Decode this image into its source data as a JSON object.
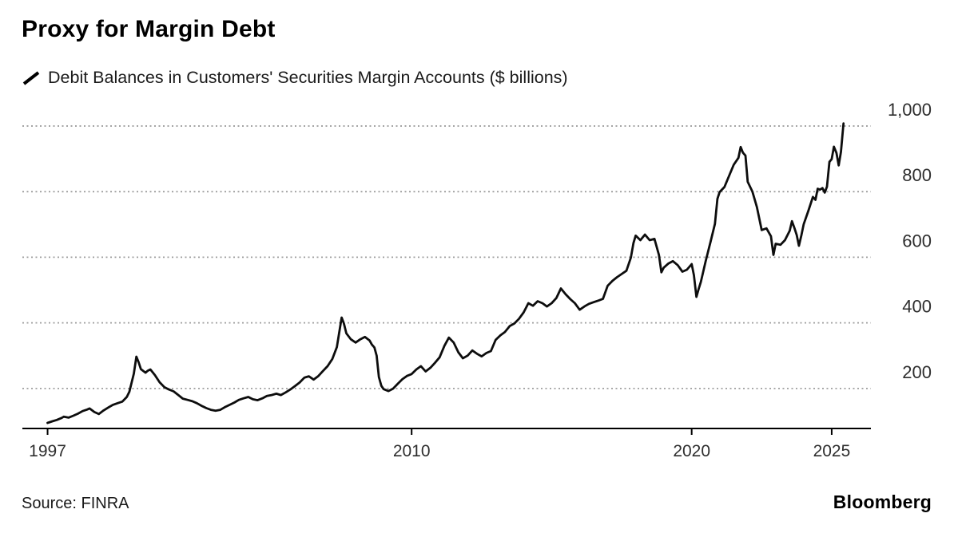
{
  "header": {
    "title": "Proxy for Margin Debt",
    "legend": {
      "series_label": "Debit Balances in Customers' Securities Margin Accounts ($ billions)"
    }
  },
  "footer": {
    "source": "Source: FINRA",
    "brand": "Bloomberg"
  },
  "colors": {
    "line": "#0d0d0d",
    "grid": "#9e9e9e",
    "axis": "#000000",
    "tick_label": "#2e2e2e"
  },
  "chart_data": {
    "type": "line",
    "title": "Proxy for Margin Debt",
    "series_name": "Debit Balances in Customers' Securities Margin Accounts ($ billions)",
    "source": "FINRA",
    "grid": "horizontal-dotted",
    "legend_position": "top-left",
    "xlim": [
      1996.1,
      2026.4
    ],
    "ylim": [
      78,
      1068
    ],
    "xticks": [
      1997,
      2010,
      2020,
      2025
    ],
    "xtick_labels": [
      "1997",
      "2010",
      "2020",
      "2025"
    ],
    "yticks": [
      200,
      400,
      600,
      800,
      1000
    ],
    "ytick_labels": [
      "200",
      "400",
      "600",
      "800",
      "1,000"
    ],
    "points": [
      [
        1997.0,
        95
      ],
      [
        1997.17,
        100
      ],
      [
        1997.33,
        104
      ],
      [
        1997.5,
        110
      ],
      [
        1997.58,
        114
      ],
      [
        1997.75,
        111
      ],
      [
        1997.92,
        117
      ],
      [
        1998.08,
        123
      ],
      [
        1998.25,
        131
      ],
      [
        1998.42,
        136
      ],
      [
        1998.5,
        139
      ],
      [
        1998.67,
        128
      ],
      [
        1998.83,
        122
      ],
      [
        1999.0,
        133
      ],
      [
        1999.17,
        142
      ],
      [
        1999.33,
        150
      ],
      [
        1999.5,
        155
      ],
      [
        1999.67,
        160
      ],
      [
        1999.83,
        174
      ],
      [
        1999.92,
        190
      ],
      [
        2000.08,
        245
      ],
      [
        2000.17,
        297
      ],
      [
        2000.25,
        280
      ],
      [
        2000.33,
        259
      ],
      [
        2000.5,
        248
      ],
      [
        2000.58,
        254
      ],
      [
        2000.67,
        258
      ],
      [
        2000.83,
        241
      ],
      [
        2001.0,
        219
      ],
      [
        2001.17,
        204
      ],
      [
        2001.33,
        197
      ],
      [
        2001.5,
        191
      ],
      [
        2001.67,
        180
      ],
      [
        2001.83,
        169
      ],
      [
        2002.0,
        165
      ],
      [
        2002.17,
        161
      ],
      [
        2002.33,
        155
      ],
      [
        2002.5,
        147
      ],
      [
        2002.67,
        140
      ],
      [
        2002.83,
        135
      ],
      [
        2003.0,
        132
      ],
      [
        2003.17,
        135
      ],
      [
        2003.33,
        143
      ],
      [
        2003.5,
        150
      ],
      [
        2003.67,
        157
      ],
      [
        2003.83,
        165
      ],
      [
        2004.0,
        170
      ],
      [
        2004.17,
        174
      ],
      [
        2004.33,
        167
      ],
      [
        2004.5,
        164
      ],
      [
        2004.67,
        170
      ],
      [
        2004.83,
        177
      ],
      [
        2005.0,
        180
      ],
      [
        2005.17,
        184
      ],
      [
        2005.33,
        180
      ],
      [
        2005.5,
        188
      ],
      [
        2005.67,
        197
      ],
      [
        2005.83,
        207
      ],
      [
        2006.0,
        218
      ],
      [
        2006.17,
        233
      ],
      [
        2006.33,
        237
      ],
      [
        2006.5,
        227
      ],
      [
        2006.67,
        238
      ],
      [
        2006.83,
        253
      ],
      [
        2007.0,
        268
      ],
      [
        2007.17,
        290
      ],
      [
        2007.33,
        326
      ],
      [
        2007.5,
        416
      ],
      [
        2007.58,
        398
      ],
      [
        2007.67,
        368
      ],
      [
        2007.83,
        350
      ],
      [
        2008.0,
        340
      ],
      [
        2008.17,
        350
      ],
      [
        2008.33,
        357
      ],
      [
        2008.5,
        346
      ],
      [
        2008.58,
        334
      ],
      [
        2008.67,
        325
      ],
      [
        2008.75,
        300
      ],
      [
        2008.83,
        235
      ],
      [
        2008.92,
        208
      ],
      [
        2009.0,
        198
      ],
      [
        2009.17,
        192
      ],
      [
        2009.33,
        199
      ],
      [
        2009.5,
        214
      ],
      [
        2009.67,
        228
      ],
      [
        2009.83,
        238
      ],
      [
        2010.0,
        244
      ],
      [
        2010.17,
        258
      ],
      [
        2010.33,
        268
      ],
      [
        2010.5,
        252
      ],
      [
        2010.67,
        263
      ],
      [
        2010.83,
        278
      ],
      [
        2011.0,
        295
      ],
      [
        2011.17,
        330
      ],
      [
        2011.33,
        355
      ],
      [
        2011.5,
        340
      ],
      [
        2011.67,
        310
      ],
      [
        2011.83,
        292
      ],
      [
        2012.0,
        300
      ],
      [
        2012.17,
        316
      ],
      [
        2012.33,
        306
      ],
      [
        2012.5,
        298
      ],
      [
        2012.67,
        308
      ],
      [
        2012.83,
        314
      ],
      [
        2013.0,
        348
      ],
      [
        2013.17,
        362
      ],
      [
        2013.33,
        372
      ],
      [
        2013.5,
        390
      ],
      [
        2013.67,
        398
      ],
      [
        2013.83,
        412
      ],
      [
        2014.0,
        432
      ],
      [
        2014.17,
        460
      ],
      [
        2014.33,
        452
      ],
      [
        2014.5,
        466
      ],
      [
        2014.67,
        460
      ],
      [
        2014.83,
        450
      ],
      [
        2015.0,
        460
      ],
      [
        2015.17,
        476
      ],
      [
        2015.33,
        505
      ],
      [
        2015.5,
        487
      ],
      [
        2015.67,
        472
      ],
      [
        2015.83,
        460
      ],
      [
        2016.0,
        440
      ],
      [
        2016.17,
        450
      ],
      [
        2016.33,
        458
      ],
      [
        2016.5,
        463
      ],
      [
        2016.67,
        468
      ],
      [
        2016.83,
        473
      ],
      [
        2017.0,
        513
      ],
      [
        2017.17,
        528
      ],
      [
        2017.33,
        539
      ],
      [
        2017.5,
        549
      ],
      [
        2017.67,
        559
      ],
      [
        2017.83,
        599
      ],
      [
        2017.92,
        643
      ],
      [
        2018.0,
        666
      ],
      [
        2018.17,
        652
      ],
      [
        2018.33,
        669
      ],
      [
        2018.5,
        652
      ],
      [
        2018.67,
        656
      ],
      [
        2018.83,
        607
      ],
      [
        2018.92,
        554
      ],
      [
        2019.0,
        568
      ],
      [
        2019.17,
        581
      ],
      [
        2019.33,
        588
      ],
      [
        2019.5,
        576
      ],
      [
        2019.67,
        556
      ],
      [
        2019.83,
        562
      ],
      [
        2020.0,
        579
      ],
      [
        2020.08,
        545
      ],
      [
        2020.17,
        479
      ],
      [
        2020.25,
        503
      ],
      [
        2020.33,
        525
      ],
      [
        2020.5,
        588
      ],
      [
        2020.67,
        646
      ],
      [
        2020.83,
        702
      ],
      [
        2020.92,
        778
      ],
      [
        2021.0,
        799
      ],
      [
        2021.17,
        814
      ],
      [
        2021.33,
        847
      ],
      [
        2021.5,
        882
      ],
      [
        2021.67,
        903
      ],
      [
        2021.75,
        936
      ],
      [
        2021.83,
        919
      ],
      [
        2021.92,
        910
      ],
      [
        2022.0,
        830
      ],
      [
        2022.17,
        800
      ],
      [
        2022.33,
        753
      ],
      [
        2022.5,
        683
      ],
      [
        2022.67,
        688
      ],
      [
        2022.83,
        664
      ],
      [
        2022.92,
        607
      ],
      [
        2023.0,
        641
      ],
      [
        2023.17,
        638
      ],
      [
        2023.33,
        652
      ],
      [
        2023.5,
        681
      ],
      [
        2023.58,
        710
      ],
      [
        2023.67,
        689
      ],
      [
        2023.75,
        668
      ],
      [
        2023.83,
        635
      ],
      [
        2023.92,
        668
      ],
      [
        2024.0,
        701
      ],
      [
        2024.17,
        742
      ],
      [
        2024.33,
        784
      ],
      [
        2024.42,
        775
      ],
      [
        2024.5,
        809
      ],
      [
        2024.58,
        806
      ],
      [
        2024.67,
        811
      ],
      [
        2024.75,
        797
      ],
      [
        2024.83,
        815
      ],
      [
        2024.92,
        891
      ],
      [
        2025.0,
        899
      ],
      [
        2025.08,
        937
      ],
      [
        2025.17,
        918
      ],
      [
        2025.25,
        880
      ],
      [
        2025.33,
        921
      ],
      [
        2025.42,
        1008
      ]
    ]
  }
}
